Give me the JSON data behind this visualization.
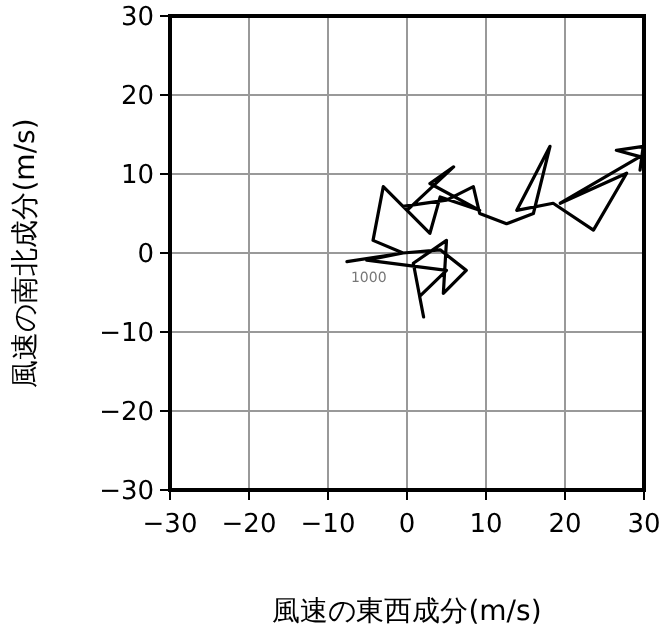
{
  "chart_data": {
    "type": "line",
    "xlabel": "風速の東西成分(m/s)",
    "ylabel": "風速の南北成分(m/s)",
    "xlim": [
      -30,
      30
    ],
    "ylim": [
      -30,
      30
    ],
    "xticks": [
      -30,
      -20,
      -10,
      0,
      10,
      20,
      30
    ],
    "yticks": [
      -30,
      -20,
      -10,
      0,
      10,
      20,
      30
    ],
    "grid": true,
    "annotations": [
      "1000"
    ],
    "series": [
      {
        "color": "#000000",
        "x": [
          -7.6,
          -0.5,
          -5.1,
          5.0,
          1.6,
          2.1,
          0.8,
          5.0,
          4.6,
          7.5,
          4.2,
          -0.5,
          -4.3,
          -3.0,
          0,
          5.9,
          2.9,
          9.2,
          4.2,
          2.9,
          -0.5,
          5.0,
          8.4,
          9.2,
          12.6,
          16.0,
          18.1,
          13.9,
          18.5,
          23.6,
          27.8,
          19.4,
          29.5,
          26.5,
          29.9,
          29.5
        ],
        "values": [
          -1.1,
          0,
          -0.9,
          -2.2,
          -5.5,
          -8.1,
          -1.3,
          1.6,
          -5.1,
          -2.2,
          0.4,
          0,
          1.6,
          8.4,
          5.4,
          10.9,
          8.8,
          5.4,
          7.1,
          2.5,
          5.9,
          6.7,
          8.4,
          5.0,
          3.7,
          5.0,
          13.5,
          5.4,
          6.3,
          2.9,
          10.1,
          6.3,
          12.2,
          13.0,
          13.5,
          10.5
        ]
      }
    ]
  }
}
